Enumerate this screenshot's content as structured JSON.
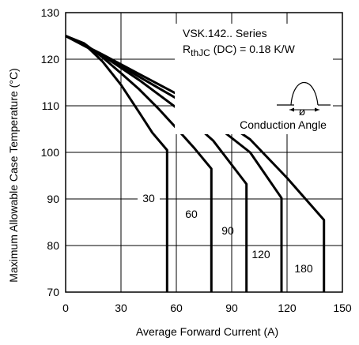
{
  "chart_data": {
    "type": "line",
    "title": "",
    "xlabel": "Average Forward Current (A)",
    "ylabel": "Maximum Allowable Case Temperature (°C)",
    "xlim": [
      0,
      150
    ],
    "ylim": [
      70,
      130
    ],
    "xticks": [
      0,
      30,
      60,
      90,
      120,
      150
    ],
    "yticks": [
      70,
      80,
      90,
      100,
      110,
      120,
      130
    ],
    "grid": true,
    "annotations": {
      "series_name": "VSK.142.. Series",
      "rth_symbol": "R",
      "rth_subscript": "thJC",
      "rth_value": " (DC) = 0.18 K/W",
      "conduction_label": "Conduction Angle",
      "phi_symbol": "ø"
    },
    "series": [
      {
        "name": "30",
        "x": [
          0,
          10,
          20,
          30,
          40,
          47,
          55,
          55
        ],
        "y": [
          125,
          123.3,
          119.5,
          114.5,
          108.5,
          104.2,
          100.5,
          70
        ]
      },
      {
        "name": "60",
        "x": [
          0,
          10,
          20,
          30,
          40,
          50,
          60,
          70,
          79,
          79
        ],
        "y": [
          125,
          123.4,
          120.4,
          117,
          113.5,
          109.5,
          105.2,
          100.8,
          96.5,
          70
        ]
      },
      {
        "name": "90",
        "x": [
          0,
          20,
          40,
          60,
          80,
          98,
          98
        ],
        "y": [
          125,
          120.8,
          115.5,
          109.6,
          102.5,
          93.2,
          70
        ]
      },
      {
        "name": "120",
        "x": [
          0,
          20,
          40,
          60,
          80,
          100,
          117,
          117
        ],
        "y": [
          125,
          120.9,
          116.2,
          111.6,
          106.2,
          100,
          90.2,
          70
        ]
      },
      {
        "name": "180",
        "x": [
          0,
          20,
          40,
          60,
          80,
          100,
          120,
          140,
          140
        ],
        "y": [
          125,
          121,
          116.8,
          112.6,
          108.2,
          102.8,
          94.5,
          85.5,
          70
        ]
      }
    ]
  }
}
